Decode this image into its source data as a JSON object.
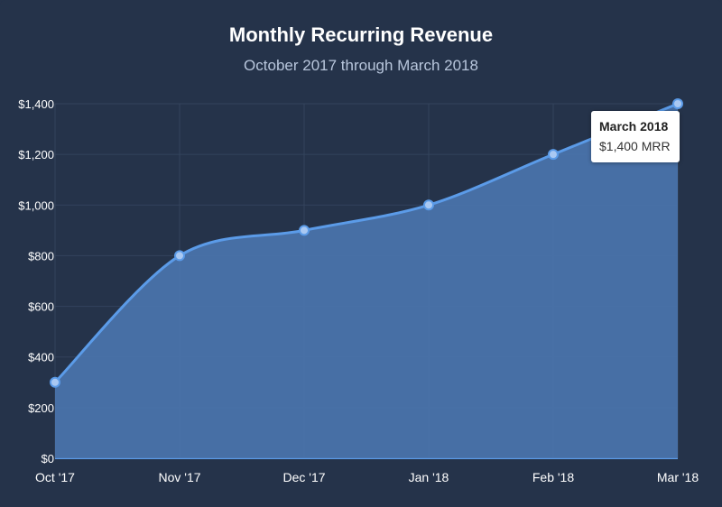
{
  "chart_data": {
    "type": "area",
    "title": "Monthly Recurring Revenue",
    "subtitle": "October 2017 through March 2018",
    "categories": [
      "Oct '17",
      "Nov '17",
      "Dec '17",
      "Jan '18",
      "Feb '18",
      "Mar '18"
    ],
    "series": [
      {
        "values": [
          300,
          800,
          900,
          1000,
          1200,
          1400
        ]
      }
    ],
    "ylim": [
      0,
      1400
    ],
    "yticks": [
      0,
      200,
      400,
      600,
      800,
      1000,
      1200,
      1400
    ],
    "ytick_labels": [
      "$0",
      "$200",
      "$400",
      "$600",
      "$800",
      "$1,000",
      "$1,200",
      "$1,400"
    ],
    "grid": true,
    "tooltip": {
      "title": "March 2018",
      "value": "$1,400 MRR"
    },
    "colors": {
      "background": "#25334a",
      "line": "#5b9be8",
      "fill": "#4a74ad",
      "grid": "#33435c",
      "point": "#a9c8f2"
    }
  }
}
